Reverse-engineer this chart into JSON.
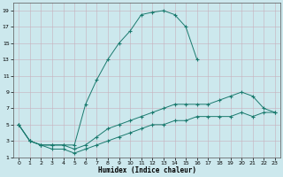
{
  "xlabel": "Humidex (Indice chaleur)",
  "xlim": [
    -0.5,
    23.5
  ],
  "ylim": [
    1,
    20
  ],
  "xticks": [
    0,
    1,
    2,
    3,
    4,
    5,
    6,
    7,
    8,
    9,
    10,
    11,
    12,
    13,
    14,
    15,
    16,
    17,
    18,
    19,
    20,
    21,
    22,
    23
  ],
  "yticks": [
    1,
    3,
    5,
    7,
    9,
    11,
    13,
    15,
    17,
    19
  ],
  "line_color": "#1a7a6e",
  "bg_color": "#cce8ed",
  "grid_color": "#c8b0bc",
  "lines": [
    {
      "x": [
        0,
        1,
        2,
        3,
        4,
        5,
        6,
        7,
        8,
        9,
        10,
        11,
        12,
        13,
        14,
        15,
        16,
        17,
        18,
        19,
        20,
        21
      ],
      "y": [
        5,
        3,
        2.5,
        2.5,
        2.5,
        2.5,
        7.5,
        10.5,
        13,
        15,
        16.5,
        18.5,
        18.8,
        19,
        18.5,
        17,
        13,
        null,
        null,
        null,
        null,
        null
      ]
    },
    {
      "x": [
        0,
        1,
        2,
        3,
        4,
        5,
        6,
        7,
        8,
        9,
        10,
        11,
        12,
        13,
        14,
        15,
        16,
        17,
        18,
        19,
        20,
        21,
        22,
        23
      ],
      "y": [
        5,
        3,
        2.5,
        2.5,
        2.5,
        2,
        2.5,
        3.5,
        4.5,
        5,
        5.5,
        6,
        6.5,
        7,
        7.5,
        7.5,
        7.5,
        7.5,
        8,
        8.5,
        9,
        8.5,
        7,
        6.5
      ]
    },
    {
      "x": [
        0,
        1,
        2,
        3,
        4,
        5,
        6,
        7,
        8,
        9,
        10,
        11,
        12,
        13,
        14,
        15,
        16,
        17,
        18,
        19,
        20,
        21,
        22,
        23
      ],
      "y": [
        5,
        3,
        2.5,
        2,
        2,
        1.5,
        2,
        2.5,
        3,
        3.5,
        4,
        4.5,
        5,
        5,
        5.5,
        5.5,
        6,
        6,
        6,
        6,
        6.5,
        6,
        6.5,
        6.5
      ]
    }
  ]
}
